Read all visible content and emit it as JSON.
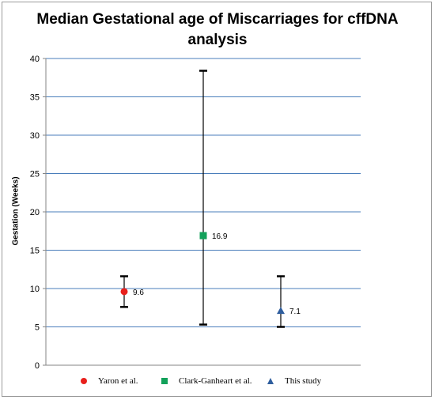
{
  "chart_data": {
    "type": "scatter",
    "title_line1": "Median Gestational age of Miscarriages for cffDNA",
    "title_line2": "analysis",
    "xlabel": "",
    "ylabel": "Gestation (Weeks)",
    "ylim": [
      0,
      40
    ],
    "yticks": [
      0,
      5,
      10,
      15,
      20,
      25,
      30,
      35,
      40
    ],
    "grid": true,
    "legend_position": "bottom",
    "series": [
      {
        "name": "Yaron et al.",
        "marker": "circle",
        "color": "#e8201c",
        "value": 9.6,
        "label": "9.6",
        "err_low": 7.6,
        "err_high": 11.6
      },
      {
        "name": "Clark-Ganheart et al.",
        "marker": "square",
        "color": "#12a15a",
        "value": 16.9,
        "label": "16.9",
        "err_low": 5.3,
        "err_high": 38.4
      },
      {
        "name": "This study",
        "marker": "triangle",
        "color": "#2f5e9e",
        "value": 7.1,
        "label": "7.1",
        "err_low": 5.0,
        "err_high": 11.6
      }
    ]
  },
  "colors": {
    "grid": "#4a7ebb",
    "axis": "#868686",
    "errorbar": "#000000"
  }
}
